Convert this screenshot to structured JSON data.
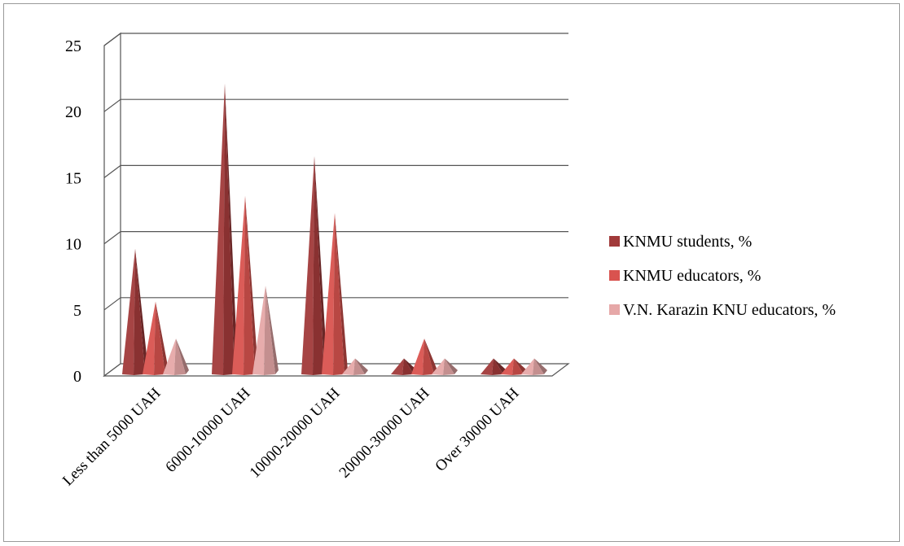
{
  "chart_data": {
    "type": "bar",
    "style": "3d-pyramid",
    "title": "",
    "xlabel": "",
    "ylabel": "",
    "ylim": [
      0,
      25
    ],
    "yticks": [
      0,
      5,
      10,
      15,
      20,
      25
    ],
    "grid": true,
    "legend_position": "right",
    "categories": [
      "Less than  5000 UAH",
      "6000-10000 UAH",
      "10000-20000 UAH",
      "20000-30000 UAH",
      "Over 30000 UAH"
    ],
    "series": [
      {
        "name": "KNMU students, %",
        "color": "#a13a3a",
        "values": [
          9.5,
          22,
          16.5,
          1.2,
          1.2
        ]
      },
      {
        "name": "KNMU educators, %",
        "color": "#d9534f",
        "values": [
          5.5,
          13.5,
          12.2,
          2.7,
          1.2
        ]
      },
      {
        "name": "V.N. Karazin KNU educators, %",
        "color": "#e6a8a8",
        "values": [
          2.7,
          6.7,
          1.2,
          1.2,
          1.2
        ]
      }
    ]
  }
}
